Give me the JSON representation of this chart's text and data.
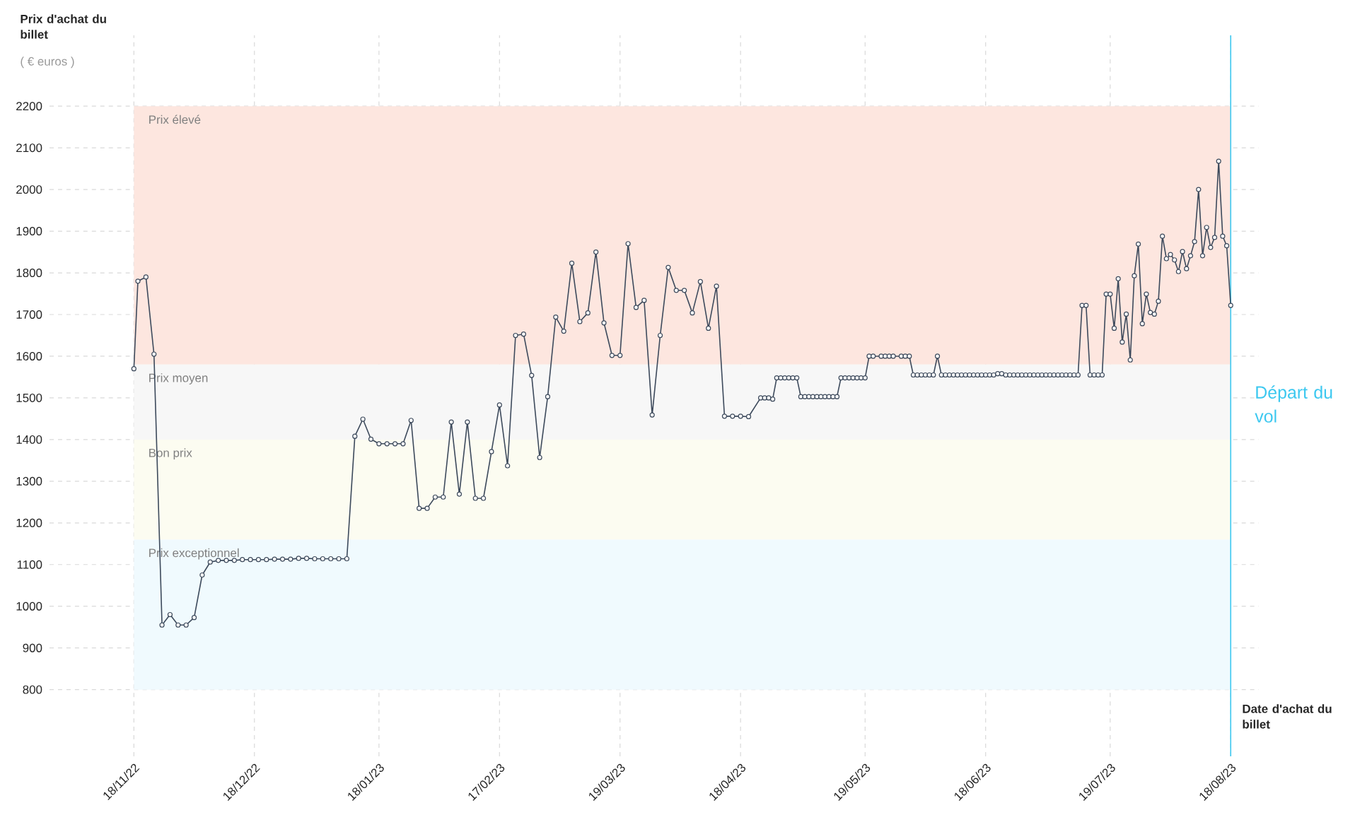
{
  "chart_data": {
    "type": "line",
    "ylabel": "Prix d'achat du billet",
    "xlabel": "Date d'achat du billet",
    "annotations": [
      "( € euros )"
    ],
    "x": [
      "2022-11-18",
      "2022-11-19",
      "2022-11-21",
      "2022-11-23",
      "2022-11-25",
      "2022-11-27",
      "2022-11-29",
      "2022-12-01",
      "2022-12-03",
      "2022-12-05",
      "2022-12-07",
      "2022-12-09",
      "2022-12-11",
      "2022-12-13",
      "2022-12-15",
      "2022-12-17",
      "2022-12-19",
      "2022-12-21",
      "2022-12-23",
      "2022-12-25",
      "2022-12-27",
      "2022-12-29",
      "2022-12-31",
      "2023-01-02",
      "2023-01-04",
      "2023-01-06",
      "2023-01-08",
      "2023-01-10",
      "2023-01-12",
      "2023-01-14",
      "2023-01-16",
      "2023-01-18",
      "2023-01-20",
      "2023-01-22",
      "2023-01-24",
      "2023-01-26",
      "2023-01-28",
      "2023-01-30",
      "2023-02-01",
      "2023-02-03",
      "2023-02-05",
      "2023-02-07",
      "2023-02-09",
      "2023-02-11",
      "2023-02-13",
      "2023-02-15",
      "2023-02-17",
      "2023-02-19",
      "2023-02-21",
      "2023-02-23",
      "2023-02-25",
      "2023-02-27",
      "2023-03-01",
      "2023-03-03",
      "2023-03-05",
      "2023-03-07",
      "2023-03-09",
      "2023-03-11",
      "2023-03-13",
      "2023-03-15",
      "2023-03-17",
      "2023-03-19",
      "2023-03-21",
      "2023-03-23",
      "2023-03-25",
      "2023-03-27",
      "2023-03-29",
      "2023-03-31",
      "2023-04-02",
      "2023-04-04",
      "2023-04-06",
      "2023-04-08",
      "2023-04-10",
      "2023-04-12",
      "2023-04-14",
      "2023-04-16",
      "2023-04-18",
      "2023-04-20",
      "2023-04-23",
      "2023-04-24",
      "2023-04-25",
      "2023-04-26",
      "2023-04-27",
      "2023-04-28",
      "2023-04-29",
      "2023-04-30",
      "2023-05-01",
      "2023-05-02",
      "2023-05-03",
      "2023-05-04",
      "2023-05-05",
      "2023-05-06",
      "2023-05-07",
      "2023-05-08",
      "2023-05-09",
      "2023-05-10",
      "2023-05-11",
      "2023-05-12",
      "2023-05-13",
      "2023-05-14",
      "2023-05-15",
      "2023-05-16",
      "2023-05-17",
      "2023-05-18",
      "2023-05-19",
      "2023-05-20",
      "2023-05-21",
      "2023-05-23",
      "2023-05-24",
      "2023-05-25",
      "2023-05-26",
      "2023-05-28",
      "2023-05-29",
      "2023-05-30",
      "2023-05-31",
      "2023-06-01",
      "2023-06-02",
      "2023-06-03",
      "2023-06-04",
      "2023-06-05",
      "2023-06-06",
      "2023-06-07",
      "2023-06-08",
      "2023-06-09",
      "2023-06-10",
      "2023-06-11",
      "2023-06-12",
      "2023-06-13",
      "2023-06-14",
      "2023-06-15",
      "2023-06-16",
      "2023-06-17",
      "2023-06-18",
      "2023-06-19",
      "2023-06-20",
      "2023-06-21",
      "2023-06-22",
      "2023-06-23",
      "2023-06-24",
      "2023-06-25",
      "2023-06-26",
      "2023-06-27",
      "2023-06-28",
      "2023-06-29",
      "2023-06-30",
      "2023-07-01",
      "2023-07-02",
      "2023-07-03",
      "2023-07-04",
      "2023-07-05",
      "2023-07-06",
      "2023-07-07",
      "2023-07-08",
      "2023-07-09",
      "2023-07-10",
      "2023-07-11",
      "2023-07-12",
      "2023-07-13",
      "2023-07-14",
      "2023-07-15",
      "2023-07-16",
      "2023-07-17",
      "2023-07-18",
      "2023-07-19",
      "2023-07-20",
      "2023-07-21",
      "2023-07-22",
      "2023-07-23",
      "2023-07-24",
      "2023-07-25",
      "2023-07-26",
      "2023-07-27",
      "2023-07-28",
      "2023-07-29",
      "2023-07-30",
      "2023-07-31",
      "2023-08-01",
      "2023-08-02",
      "2023-08-03",
      "2023-08-04",
      "2023-08-05",
      "2023-08-06",
      "2023-08-07",
      "2023-08-08",
      "2023-08-09",
      "2023-08-10",
      "2023-08-11",
      "2023-08-12",
      "2023-08-13",
      "2023-08-14",
      "2023-08-15",
      "2023-08-16",
      "2023-08-17",
      "2023-08-18"
    ],
    "series": [
      {
        "color": "#3d4a5c",
        "values": [
          1570,
          1780,
          1790,
          1605,
          955,
          980,
          955,
          955,
          973,
          1075,
          1106,
          1110,
          1110,
          1110,
          1112,
          1112,
          1112,
          1112,
          1113,
          1113,
          1113,
          1115,
          1115,
          1114,
          1114,
          1114,
          1114,
          1114,
          1408,
          1449,
          1401,
          1390,
          1390,
          1390,
          1390,
          1446,
          1235,
          1235,
          1262,
          1262,
          1442,
          1269,
          1442,
          1259,
          1259,
          1371,
          1483,
          1337,
          1650,
          1653,
          1554,
          1357,
          1503,
          1694,
          1660,
          1823,
          1683,
          1704,
          1850,
          1680,
          1602,
          1602,
          1870,
          1717,
          1734,
          1459,
          1650,
          1813,
          1758,
          1758,
          1704,
          1779,
          1667,
          1768,
          1456,
          1456,
          1456,
          1455,
          1500,
          1500,
          1500,
          1497,
          1548,
          1548,
          1548,
          1548,
          1548,
          1548,
          1503,
          1503,
          1503,
          1503,
          1503,
          1503,
          1503,
          1503,
          1503,
          1503,
          1548,
          1548,
          1548,
          1548,
          1548,
          1548,
          1548,
          1600,
          1600,
          1600,
          1600,
          1600,
          1600,
          1600,
          1600,
          1600,
          1555,
          1555,
          1555,
          1555,
          1555,
          1555,
          1600,
          1555,
          1555,
          1555,
          1555,
          1555,
          1555,
          1555,
          1555,
          1555,
          1555,
          1555,
          1555,
          1555,
          1555,
          1558,
          1558,
          1555,
          1555,
          1555,
          1555,
          1555,
          1555,
          1555,
          1555,
          1555,
          1555,
          1555,
          1555,
          1555,
          1555,
          1555,
          1555,
          1555,
          1555,
          1555,
          1722,
          1722,
          1555,
          1555,
          1555,
          1555,
          1749,
          1749,
          1667,
          1786,
          1634,
          1701,
          1591,
          1793,
          1869,
          1678,
          1749,
          1705,
          1701,
          1732,
          1888,
          1834,
          1844,
          1831,
          1803,
          1851,
          1810,
          1841,
          1875,
          2000,
          1841,
          1909,
          1861,
          1885,
          2068,
          1888,
          1865,
          1722
        ]
      }
    ],
    "xlim": [
      "2022-10-28",
      "2023-08-25"
    ],
    "ylim": [
      640,
      2370
    ],
    "xticks": [
      {
        "value": "2022-11-18",
        "label": "18/11/22"
      },
      {
        "value": "2022-12-18",
        "label": "18/12/22"
      },
      {
        "value": "2023-01-18",
        "label": "18/01/23"
      },
      {
        "value": "2023-02-17",
        "label": "17/02/23"
      },
      {
        "value": "2023-03-19",
        "label": "19/03/23"
      },
      {
        "value": "2023-04-18",
        "label": "18/04/23"
      },
      {
        "value": "2023-05-19",
        "label": "19/05/23"
      },
      {
        "value": "2023-06-18",
        "label": "18/06/23"
      },
      {
        "value": "2023-07-19",
        "label": "19/07/23"
      },
      {
        "value": "2023-08-18",
        "label": "18/08/23"
      }
    ],
    "yticks": [
      800,
      900,
      1000,
      1100,
      1200,
      1300,
      1400,
      1500,
      1600,
      1700,
      1800,
      1900,
      2000,
      2100,
      2200
    ],
    "bands": [
      {
        "axis": "y",
        "from": 1580,
        "to": 2200,
        "label": "Prix élevé",
        "color": "#fde6df"
      },
      {
        "axis": "y",
        "from": 1400,
        "to": 1580,
        "label": "Prix moyen",
        "color": "#f7f7f7"
      },
      {
        "axis": "y",
        "from": 1160,
        "to": 1400,
        "label": "Bon prix",
        "color": "#fcfcf1"
      },
      {
        "axis": "y",
        "from": 800,
        "to": 1160,
        "label": "Prix exceptionnel",
        "color": "#f0fafe"
      }
    ],
    "ref_lines": [
      {
        "axis": "x",
        "value": "2023-08-18",
        "label": "Départ du vol",
        "color": "#3cc8f0",
        "line_style": "solid"
      }
    ],
    "grid": true,
    "marker": "circle",
    "line_style": "solid"
  }
}
